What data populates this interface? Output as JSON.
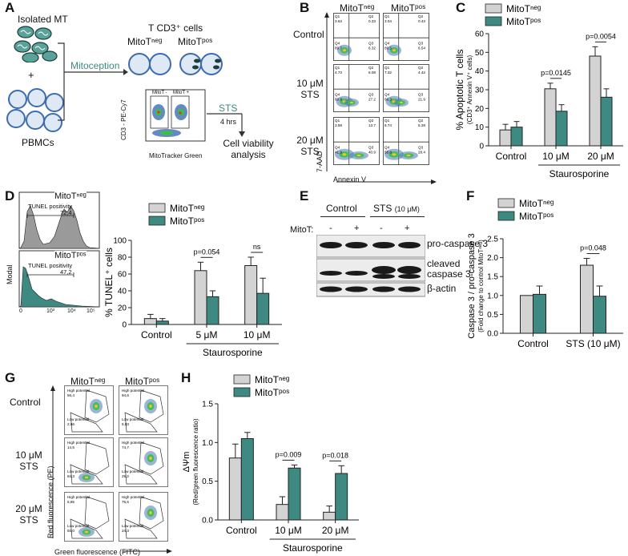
{
  "colors": {
    "neg": "#d3d3d3",
    "pos": "#3e8a83",
    "cell": "#4a77b4",
    "green": "#5aa39a"
  },
  "panel_labels": {
    "A": "A",
    "B": "B",
    "C": "C",
    "D": "D",
    "E": "E",
    "F": "F",
    "G": "G",
    "H": "H"
  },
  "panelA": {
    "isolated_mt": "Isolated MT",
    "plus": "+",
    "pbmcs": "PBMCs",
    "mitoception": "Mitoception",
    "tcells": "T CD3⁺ cells",
    "mitot_neg": "MitoTⁿᵉᵍ",
    "mitot_pos": "MitoTᵖᵒˢ",
    "gate_neg": "MitoT -",
    "gate_pos": "MitoT +",
    "ylabel": "CD3 - PE-Cy7",
    "xlabel": "MitoTracker Green",
    "sts": "STS",
    "hrs": "4 hrs",
    "viability": "Cell viability analysis"
  },
  "panelB": {
    "col_neg": "MitoTⁿᵉᵍ",
    "col_pos": "MitoTᵖᵒˢ",
    "rows": [
      "Control",
      "10 μM STS",
      "20 μM STS"
    ],
    "ylabel": "7-AAD",
    "xlabel": "Annexin V",
    "quads": [
      [
        {
          "q1": "Q1",
          "q2": "Q2",
          "q3": "Q3",
          "q4": "Q4",
          "v1": "3.63",
          "v2": "0.33",
          "v3": "6.32",
          "v4": "89.7"
        },
        {
          "q1": "Q1",
          "q2": "Q2",
          "q3": "Q3",
          "q4": "Q4",
          "v1": "3.04",
          "v2": "0.43",
          "v3": "6.54",
          "v4": "89.5"
        }
      ],
      [
        {
          "q1": "Q1",
          "q2": "Q2",
          "q3": "Q3",
          "q4": "Q4",
          "v1": "4.73",
          "v2": "6.08",
          "v3": "27.2",
          "v4": "60.8"
        },
        {
          "q1": "Q1",
          "q2": "Q2",
          "q3": "Q3",
          "q4": "Q4",
          "v1": "7.32",
          "v2": "4.42",
          "v3": "21.9",
          "v4": "66.3"
        }
      ],
      [
        {
          "q1": "Q1",
          "q2": "Q2",
          "q3": "Q3",
          "q4": "Q4",
          "v1": "3.58",
          "v2": "13.7",
          "v3": "40.9",
          "v4": "41.9"
        },
        {
          "q1": "Q1",
          "q2": "Q2",
          "q3": "Q3",
          "q4": "Q4",
          "v1": "6.74",
          "v2": "6.28",
          "v3": "28.4",
          "v4": "58.8"
        }
      ]
    ]
  },
  "panelD": {
    "hist_neg_label": "MitoTⁿᵉᵍ",
    "hist_pos_label": "MitoTᵖᵒˢ",
    "tunel_text": "TUNEL positivity",
    "tunel_neg": "72,4",
    "tunel_pos": "47,2",
    "ylabel": "Modal",
    "xticks": [
      "0",
      "10³",
      "10⁴",
      "10⁵"
    ]
  },
  "panelE": {
    "control": "Control",
    "sts": "STS",
    "sts_conc": "(10 μM)",
    "mitot": "MitoT:",
    "signs": [
      "-",
      "+",
      "-",
      "+"
    ],
    "bands": [
      "pro-caspase 3",
      "cleaved caspase 3",
      "β-actin"
    ]
  },
  "panelG": {
    "col_neg": "MitoTⁿᵉᵍ",
    "col_pos": "MitoTᵖᵒˢ",
    "rows": [
      "Control",
      "10 μM STS",
      "20 μM STS"
    ],
    "high": "High potential",
    "low": "Low potential",
    "values": [
      [
        {
          "high": "56,4",
          "low": "2,66"
        },
        {
          "high": "94,6",
          "low": "5,83"
        }
      ],
      [
        {
          "high": "14,5",
          "low": "84,3"
        },
        {
          "high": "74,7",
          "low": "25,2"
        }
      ],
      [
        {
          "high": "5,85",
          "low": "93,0"
        },
        {
          "high": "75,5",
          "low": "24,3"
        }
      ]
    ],
    "ylabel": "Red fluorescence (PE)",
    "xlabel": "Green fluorescence (FITC)"
  },
  "chart_data": [
    {
      "id": "C",
      "type": "bar",
      "legend": [
        "MitoTⁿᵉᵍ",
        "MitoTᵖᵒˢ"
      ],
      "categories": [
        "Control",
        "10 μM",
        "20 μM"
      ],
      "group_label": "Staurosporine",
      "ylabel": "% Apoptotic T cells",
      "ylabel2": "(CD3⁺ Annexin V⁺ cells)",
      "ylim": [
        0,
        60
      ],
      "yticks": [
        "0",
        "10",
        "20",
        "30",
        "40",
        "50",
        "60"
      ],
      "series": [
        {
          "name": "MitoTⁿᵉᵍ",
          "values": [
            8.5,
            30.5,
            48
          ],
          "errors": [
            3,
            3,
            5
          ]
        },
        {
          "name": "MitoTᵖᵒˢ",
          "values": [
            10,
            18.5,
            26
          ],
          "errors": [
            3,
            3.5,
            4.5
          ]
        }
      ],
      "pvalues": [
        {
          "cat": 1,
          "text": "p=0.0145"
        },
        {
          "cat": 2,
          "text": "p=0.0054"
        }
      ]
    },
    {
      "id": "D",
      "type": "bar",
      "legend": [
        "MitoTⁿᵉᵍ",
        "MitoTᵖᵒˢ"
      ],
      "categories": [
        "Control",
        "5 μM",
        "10 μM"
      ],
      "group_label": "Staurosporine",
      "ylabel": "% TUNEL⁺ cells",
      "ylabel2": "",
      "ylim": [
        0,
        100
      ],
      "yticks": [
        "0",
        "20",
        "40",
        "60",
        "80",
        "100"
      ],
      "series": [
        {
          "name": "MitoTⁿᵉᵍ",
          "values": [
            7,
            64,
            70
          ],
          "errors": [
            5,
            10,
            10
          ]
        },
        {
          "name": "MitoTᵖᵒˢ",
          "values": [
            4,
            33,
            37
          ],
          "errors": [
            3,
            7,
            18
          ]
        }
      ],
      "pvalues": [
        {
          "cat": 1,
          "text": "p=0.054"
        },
        {
          "cat": 2,
          "text": "ns"
        }
      ]
    },
    {
      "id": "F",
      "type": "bar",
      "legend": [
        "MitoTⁿᵉᵍ",
        "MitoTᵖᵒˢ"
      ],
      "categories": [
        "Control",
        "STS (10 μM)"
      ],
      "group_label": "",
      "ylabel": "Caspase 3 / pro-caspase 3",
      "ylabel2": "(Fold change to control MitoTⁿᵉᵍ)",
      "ylim": [
        0,
        2.5
      ],
      "yticks": [
        "0.0",
        "0.5",
        "1.0",
        "1.5",
        "2.0",
        "2.5"
      ],
      "series": [
        {
          "name": "MitoTⁿᵉᵍ",
          "values": [
            1.0,
            1.8
          ],
          "errors": [
            0,
            0.18
          ]
        },
        {
          "name": "MitoTᵖᵒˢ",
          "values": [
            1.03,
            0.98
          ],
          "errors": [
            0.22,
            0.27
          ]
        }
      ],
      "pvalues": [
        {
          "cat": 1,
          "text": "p=0.048"
        }
      ]
    },
    {
      "id": "H",
      "type": "bar",
      "legend": [
        "MitoTⁿᵉᵍ",
        "MitoTᵖᵒˢ"
      ],
      "categories": [
        "Control",
        "10 μM",
        "20 μM"
      ],
      "group_label": "Staurosporine",
      "ylabel": "ΔΨm",
      "ylabel2": "(Red/green fluorescence ratio)",
      "ylim": [
        0,
        1.5
      ],
      "yticks": [
        "0.0",
        "0.5",
        "1.0",
        "1.5"
      ],
      "series": [
        {
          "name": "MitoTⁿᵉᵍ",
          "values": [
            0.8,
            0.2,
            0.1
          ],
          "errors": [
            0.18,
            0.1,
            0.08
          ]
        },
        {
          "name": "MitoTᵖᵒˢ",
          "values": [
            1.05,
            0.67,
            0.6
          ],
          "errors": [
            0.08,
            0.04,
            0.1
          ]
        }
      ],
      "pvalues": [
        {
          "cat": 1,
          "text": "p=0.009"
        },
        {
          "cat": 2,
          "text": "p=0.018"
        }
      ]
    }
  ]
}
